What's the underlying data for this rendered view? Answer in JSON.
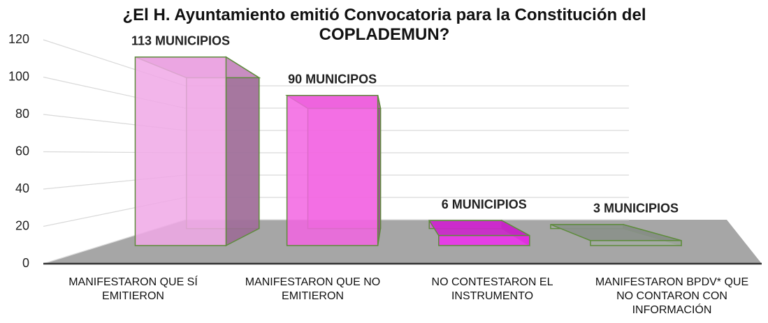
{
  "chart_data": {
    "type": "bar3d",
    "title": "¿El H. Ayuntamiento emitió Convocatoria para la Constitución del COPLADEMUN?",
    "categories": [
      "MANIFESTARON QUE SÍ EMITIERON",
      "MANIFESTARON QUE NO EMITIERON",
      "NO CONTESTARON EL INSTRUMENTO",
      "MANIFESTARON BPDV* QUE NO CONTARON CON INFORMACIÓN"
    ],
    "values": [
      113,
      90,
      6,
      3
    ],
    "value_labels": [
      "113 MUNICIPIOS",
      "90 MUNICIPOS",
      "6 MUNICIPIOS",
      "3 MUNICIPIOS"
    ],
    "colors": [
      "#f0a8e6",
      "#f264e2",
      "#f02cf0",
      "#a4aaa4"
    ],
    "ylim": [
      0,
      120
    ],
    "yticks": [
      0,
      20,
      40,
      60,
      80,
      100,
      120
    ],
    "grid": true
  }
}
